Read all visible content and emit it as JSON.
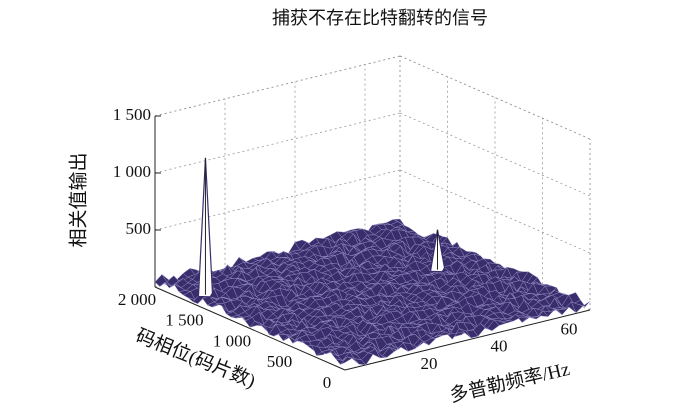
{
  "chart_data": {
    "type": "surface3d",
    "title": "捕获不存在比特翻转的信号",
    "xlabel": "多普勒频率/Hz",
    "ylabel": "码相位(码片数)",
    "zlabel": "相关值输出",
    "xlim": [
      0,
      70
    ],
    "xticks": [
      20,
      40,
      60
    ],
    "ylim": [
      0,
      2000
    ],
    "yticks": [
      0,
      500,
      {
        "value": 1000,
        "label": "1 000"
      },
      {
        "value": 1500,
        "label": "1 500"
      },
      {
        "value": 2000,
        "label": "2 000"
      }
    ],
    "zlim": [
      0,
      1500
    ],
    "zticks": [
      500,
      {
        "value": 1000,
        "label": "1 000"
      },
      {
        "value": 1500,
        "label": "1 500"
      }
    ],
    "noise_floor": 100,
    "peaks": {
      "x": [
        6,
        59
      ],
      "y": [
        1690,
        1200
      ],
      "z": [
        1200,
        350
      ]
    },
    "color": "#3a2d6b",
    "edge_color": "#9a96cc",
    "grid": true
  }
}
